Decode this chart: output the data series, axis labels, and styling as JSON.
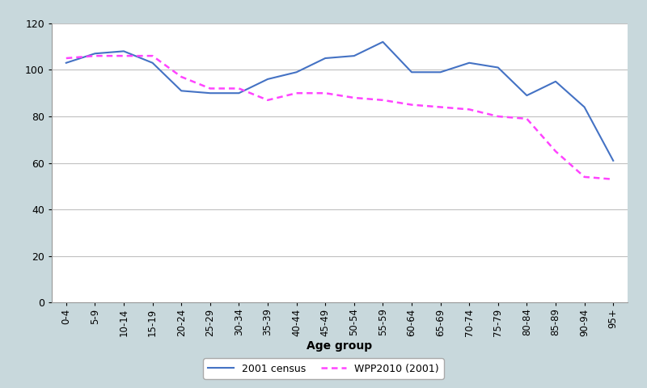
{
  "age_groups": [
    "0-4",
    "5-9",
    "10-14",
    "15-19",
    "20-24",
    "25-29",
    "30-34",
    "35-39",
    "40-44",
    "45-49",
    "50-54",
    "55-59",
    "60-64",
    "65-69",
    "70-74",
    "75-79",
    "80-84",
    "85-89",
    "90-94",
    "95+"
  ],
  "census_2001": [
    103,
    107,
    108,
    103,
    91,
    90,
    90,
    96,
    99,
    105,
    106,
    112,
    99,
    99,
    103,
    101,
    89,
    95,
    84,
    61
  ],
  "wpp_2001": [
    105,
    106,
    106,
    106,
    97,
    92,
    92,
    87,
    90,
    90,
    88,
    87,
    85,
    84,
    83,
    80,
    79,
    65,
    54,
    53
  ],
  "census_color": "#4472C4",
  "wpp_color": "#FF44FF",
  "xlabel": "Age group",
  "ylim": [
    0,
    120
  ],
  "yticks": [
    0,
    20,
    40,
    60,
    80,
    100,
    120
  ],
  "legend_census": "2001 census",
  "legend_wpp": "WPP2010 (2001)",
  "bg_color": "#C8D8DC",
  "plot_bg_color": "#FFFFFF",
  "grid_color": "#C0C0C0"
}
